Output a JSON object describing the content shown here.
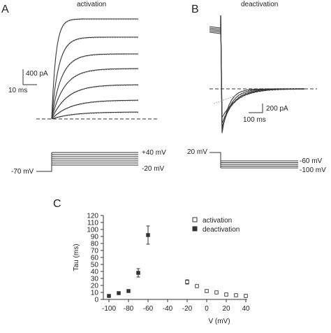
{
  "panels": {
    "a": {
      "letter": "A",
      "title": "activation",
      "scale_y_label": "400 pA",
      "scale_x_label": "10 ms",
      "protocol_hold": "-70 mV",
      "protocol_top": "+40 mV",
      "protocol_bottom": "-20 mV"
    },
    "b": {
      "letter": "B",
      "title": "deactivation",
      "scale_y_label": "200 pA",
      "scale_x_label": "100 ms",
      "protocol_hold": "20 mV",
      "protocol_top": "-60 mV",
      "protocol_bottom": "-100 mV"
    },
    "c": {
      "letter": "C"
    }
  },
  "chart_data": {
    "type": "scatter",
    "xlabel": "V (mV)",
    "ylabel": "Tau (ms)",
    "xlim": [
      -100,
      40
    ],
    "ylim": [
      0,
      120
    ],
    "xticks": [
      -100,
      -80,
      -60,
      -40,
      -20,
      0,
      20,
      40
    ],
    "yticks": [
      0,
      10,
      20,
      30,
      40,
      50,
      60,
      70,
      80,
      90,
      100,
      110,
      120
    ],
    "legend_position": "top-right",
    "grid": false,
    "series": [
      {
        "name": "activation",
        "marker": "open-square",
        "x": [
          -20,
          -10,
          0,
          10,
          20,
          30,
          40
        ],
        "y": [
          25,
          19,
          12,
          10,
          7,
          6,
          5
        ],
        "err": [
          3,
          1,
          1,
          1,
          0.5,
          0.5,
          0.5
        ]
      },
      {
        "name": "deactivation",
        "marker": "filled-square",
        "x": [
          -100,
          -90,
          -80,
          -70,
          -60
        ],
        "y": [
          5,
          9,
          12,
          38,
          92
        ],
        "err": [
          0.5,
          0.5,
          1,
          6,
          13
        ]
      }
    ]
  }
}
